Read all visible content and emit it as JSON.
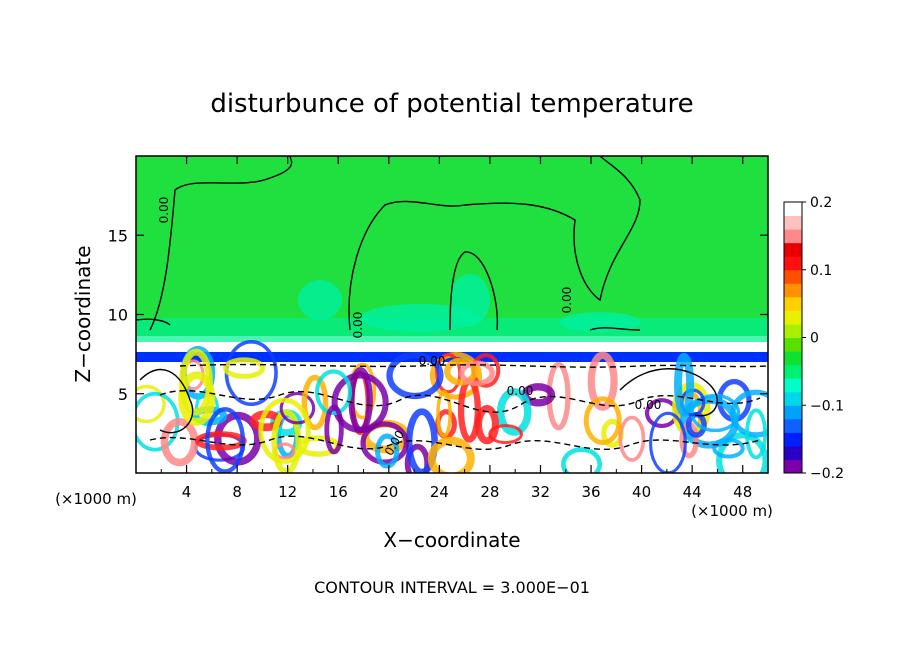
{
  "chart_data": {
    "type": "heatmap",
    "title": "disturbunce of potential temperature",
    "xlabel": "X−coordinate",
    "ylabel": "Z−coordinate",
    "x_unit": "(×1000 m)",
    "x_unit_right": "(×1000 m)",
    "footer": "CONTOUR INTERVAL = 3.000E−01",
    "xlim": [
      0,
      50
    ],
    "ylim": [
      0,
      20
    ],
    "x_ticks": [
      "4",
      "8",
      "12",
      "16",
      "20",
      "24",
      "28",
      "32",
      "36",
      "40",
      "44",
      "48"
    ],
    "y_ticks": [
      "5",
      "10",
      "15"
    ],
    "colorbar": {
      "range": [
        -0.2,
        0.2
      ],
      "tick_labels": [
        "0.2",
        "0.1",
        "0",
        "−0.1",
        "−0.2"
      ],
      "tick_values": [
        0.2,
        0.1,
        0,
        -0.1,
        -0.2
      ],
      "colors": [
        "#7b00a8",
        "#2a00c8",
        "#0020ff",
        "#1060ff",
        "#00a0ff",
        "#00d8e8",
        "#00ffc8",
        "#00f070",
        "#10e030",
        "#5ae000",
        "#a8f000",
        "#e8f000",
        "#ffd000",
        "#ff9000",
        "#ff5000",
        "#ff1010",
        "#e80000",
        "#ff8888",
        "#ffc0c0",
        "#ffffff"
      ]
    },
    "contour_labels": [
      "0.00",
      "0.00",
      "0.00",
      "0.00",
      "0.00",
      "0.00",
      "0.00"
    ],
    "regions": {
      "upper": "slightly negative, near 0",
      "lower": "strong fluctuations ±0.2 in z < 7"
    }
  }
}
